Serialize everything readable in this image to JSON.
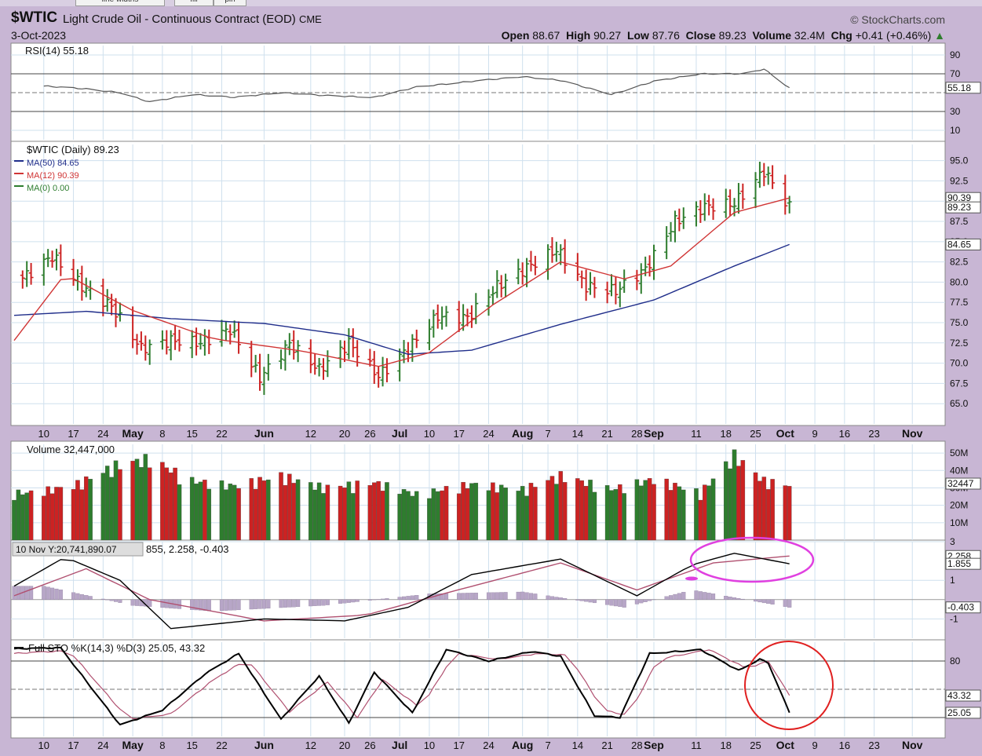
{
  "toolbar_tabs": [
    "line widths",
    "fill",
    "pin"
  ],
  "header": {
    "symbol": "$WTIC",
    "name": "Light Crude Oil - Continuous Contract (EOD)",
    "exchange": "CME",
    "date": "3-Oct-2023",
    "brand": "© StockCharts.com",
    "open_label": "Open",
    "open": "88.67",
    "high_label": "High",
    "high": "90.27",
    "low_label": "Low",
    "low": "87.76",
    "close_label": "Close",
    "close": "89.23",
    "volume_label": "Volume",
    "volume": "32.4M",
    "chg_label": "Chg",
    "chg": "+0.41 (+0.46%)"
  },
  "colors": {
    "up": "#2e7d2e",
    "down": "#cc2222",
    "ma50": "#1f2d8a",
    "ma12": "#d03535",
    "macd_signal": "#b05070",
    "annotation_magenta": "#e040e0",
    "annotation_red": "#e02020"
  },
  "chart_data": [
    {
      "type": "line",
      "panel": "rsi",
      "title": "RSI(14) 55.18",
      "ylim": [
        0,
        100
      ],
      "yticks": [
        "90",
        "70",
        "30",
        "10"
      ],
      "reference_lines": [
        70,
        50,
        30
      ],
      "last_value_label": "55.18",
      "x": [
        "2023-04-10",
        "2023-04-20",
        "2023-04-28",
        "2023-05-05",
        "2023-05-15",
        "2023-05-25",
        "2023-06-05",
        "2023-06-15",
        "2023-06-27",
        "2023-07-07",
        "2023-07-20",
        "2023-08-01",
        "2023-08-10",
        "2023-08-22",
        "2023-09-01",
        "2023-09-12",
        "2023-09-22",
        "2023-09-27",
        "2023-10-03"
      ],
      "values": [
        57,
        54,
        50,
        40,
        48,
        45,
        50,
        47,
        45,
        56,
        62,
        67,
        63,
        48,
        62,
        70,
        70,
        75,
        55
      ]
    },
    {
      "type": "bar",
      "panel": "price",
      "title": "$WTIC (Daily) 89.23",
      "ylim": [
        62.5,
        97
      ],
      "yticks": [
        "95.0",
        "92.5",
        "90.0",
        "87.5",
        "85.0",
        "82.5",
        "80.0",
        "77.5",
        "75.0",
        "72.5",
        "70.0",
        "67.5",
        "65.0"
      ],
      "x_labels": [
        "10",
        "17",
        "24",
        "May",
        "8",
        "15",
        "22",
        "Jun",
        "12",
        "20",
        "26",
        "Jul",
        "10",
        "17",
        "24",
        "Aug",
        "7",
        "14",
        "21",
        "28",
        "Sep",
        "11",
        "18",
        "25",
        "Oct",
        "9",
        "16",
        "23",
        "Nov"
      ],
      "series": [
        {
          "name": "$WTIC (Daily) 89.23",
          "style": "ohlc_bars",
          "x": [
            "2023-04-05",
            "2023-04-12",
            "2023-04-19",
            "2023-04-26",
            "2023-05-03",
            "2023-05-10",
            "2023-05-17",
            "2023-05-24",
            "2023-05-31",
            "2023-06-07",
            "2023-06-14",
            "2023-06-21",
            "2023-06-28",
            "2023-07-05",
            "2023-07-12",
            "2023-07-19",
            "2023-07-26",
            "2023-08-02",
            "2023-08-09",
            "2023-08-16",
            "2023-08-23",
            "2023-08-30",
            "2023-09-06",
            "2023-09-13",
            "2023-09-20",
            "2023-09-27",
            "2023-10-03"
          ],
          "values": [
            80.5,
            83.2,
            79.5,
            77.0,
            71.8,
            72.8,
            72.5,
            74.2,
            68.2,
            72.4,
            69.2,
            72.5,
            68.4,
            71.8,
            75.8,
            75.6,
            79.5,
            81.8,
            84.0,
            79.5,
            78.9,
            81.6,
            87.5,
            89.3,
            89.7,
            93.7,
            89.23
          ]
        },
        {
          "name": "MA(50) 84.65",
          "style": "line",
          "x": [
            "2023-04-03",
            "2023-04-20",
            "2023-05-10",
            "2023-06-01",
            "2023-06-20",
            "2023-07-05",
            "2023-07-20",
            "2023-08-10",
            "2023-09-01",
            "2023-09-20",
            "2023-10-03"
          ],
          "values": [
            75.9,
            76.4,
            75.5,
            74.9,
            73.5,
            71.1,
            71.6,
            74.8,
            77.8,
            82.0,
            84.65
          ]
        },
        {
          "name": "MA(12) 90.39",
          "style": "line",
          "x": [
            "2023-04-03",
            "2023-04-15",
            "2023-05-01",
            "2023-05-20",
            "2023-06-10",
            "2023-06-28",
            "2023-07-10",
            "2023-07-25",
            "2023-08-10",
            "2023-08-25",
            "2023-09-05",
            "2023-09-20",
            "2023-10-03"
          ],
          "values": [
            72.8,
            81.0,
            76.5,
            73.0,
            71.5,
            69.6,
            71.3,
            77.2,
            82.5,
            80.4,
            82.0,
            88.6,
            90.39
          ]
        },
        {
          "name": "MA(0) 0.00",
          "style": "line",
          "x": [],
          "values": []
        }
      ],
      "last_value_labels": [
        "90.39",
        "89.23",
        "84.65"
      ]
    },
    {
      "type": "bar",
      "panel": "volume",
      "title": "Volume 32,447,000",
      "ylim": [
        0,
        55000000
      ],
      "yticks": [
        "50M",
        "40M",
        "30M",
        "20M",
        "10M"
      ],
      "last_value_label": "32447",
      "x": [
        "2023-04-07",
        "2023-04-17",
        "2023-04-27",
        "2023-05-05",
        "2023-05-15",
        "2023-05-25",
        "2023-06-05",
        "2023-06-15",
        "2023-06-27",
        "2023-07-07",
        "2023-07-20",
        "2023-08-01",
        "2023-08-10",
        "2023-08-22",
        "2023-09-01",
        "2023-09-12",
        "2023-09-20",
        "2023-09-27",
        "2023-10-03"
      ],
      "values": [
        28000000,
        32000000,
        44000000,
        48000000,
        35000000,
        32000000,
        38000000,
        31000000,
        34000000,
        27000000,
        33000000,
        30000000,
        38000000,
        30000000,
        36000000,
        28000000,
        50000000,
        35000000,
        32447000
      ]
    },
    {
      "type": "line",
      "panel": "macd",
      "title": "855, 2.258, -0.403",
      "tooltip": "10 Nov Y:20,741,890.07",
      "ylim": [
        -2,
        3
      ],
      "yticks": [
        "3",
        "1",
        "-1"
      ],
      "last_value_labels": [
        "2.258",
        "1.855",
        "-0.403"
      ],
      "series": [
        {
          "name": "MACD",
          "x": [
            "2023-04-03",
            "2023-04-15",
            "2023-04-28",
            "2023-05-10",
            "2023-06-01",
            "2023-06-20",
            "2023-07-05",
            "2023-07-20",
            "2023-08-10",
            "2023-08-28",
            "2023-09-10",
            "2023-09-20",
            "2023-10-03"
          ],
          "values": [
            0.7,
            2.2,
            1.0,
            -1.5,
            -1.0,
            -1.1,
            -0.4,
            1.3,
            2.1,
            0.2,
            1.8,
            2.4,
            1.855
          ]
        },
        {
          "name": "Signal",
          "x": [
            "2023-04-03",
            "2023-04-20",
            "2023-05-05",
            "2023-06-01",
            "2023-06-25",
            "2023-07-15",
            "2023-08-10",
            "2023-08-28",
            "2023-09-15",
            "2023-10-03"
          ],
          "values": [
            0.2,
            1.6,
            0.0,
            -1.1,
            -0.8,
            0.4,
            1.9,
            0.5,
            1.9,
            2.258
          ]
        },
        {
          "name": "Histogram",
          "x": [
            "2023-04-10",
            "2023-05-01",
            "2023-05-20",
            "2023-06-15",
            "2023-07-10",
            "2023-08-01",
            "2023-08-25",
            "2023-09-10",
            "2023-10-03"
          ],
          "values": [
            0.7,
            -0.3,
            -0.6,
            -0.3,
            0.3,
            0.4,
            -0.4,
            0.5,
            -0.403
          ]
        }
      ]
    },
    {
      "type": "line",
      "panel": "stochastic",
      "title": "Full STO %K(14,3) %D(3) 25.05, 43.32",
      "ylim": [
        0,
        100
      ],
      "yticks": [
        "80"
      ],
      "reference_lines": [
        80,
        50,
        20
      ],
      "last_value_labels": [
        "43.32",
        "25.05"
      ],
      "x_labels": [
        "10",
        "17",
        "24",
        "May",
        "8",
        "15",
        "22",
        "Jun",
        "12",
        "20",
        "26",
        "Jul",
        "10",
        "17",
        "24",
        "Aug",
        "7",
        "14",
        "21",
        "28",
        "Sep",
        "11",
        "18",
        "25",
        "Oct",
        "9",
        "16",
        "23",
        "Nov"
      ],
      "series": [
        {
          "name": "%K",
          "x": [
            "2023-04-03",
            "2023-04-14",
            "2023-04-28",
            "2023-05-08",
            "2023-05-18",
            "2023-05-26",
            "2023-06-05",
            "2023-06-14",
            "2023-06-21",
            "2023-06-27",
            "2023-07-06",
            "2023-07-14",
            "2023-07-24",
            "2023-08-03",
            "2023-08-10",
            "2023-08-18",
            "2023-08-24",
            "2023-08-31",
            "2023-09-12",
            "2023-09-21",
            "2023-09-26",
            "2023-09-28",
            "2023-10-03"
          ],
          "values": [
            93,
            94,
            12,
            28,
            66,
            88,
            18,
            64,
            14,
            68,
            25,
            92,
            80,
            90,
            85,
            22,
            20,
            88,
            92,
            70,
            82,
            78,
            25.05
          ]
        },
        {
          "name": "%D",
          "x": [
            "2023-04-03",
            "2023-04-16",
            "2023-04-30",
            "2023-05-10",
            "2023-05-20",
            "2023-05-28",
            "2023-06-07",
            "2023-06-16",
            "2023-06-23",
            "2023-06-29",
            "2023-07-08",
            "2023-07-16",
            "2023-07-26",
            "2023-08-05",
            "2023-08-12",
            "2023-08-20",
            "2023-08-26",
            "2023-09-02",
            "2023-09-14",
            "2023-09-23",
            "2023-09-28",
            "2023-10-03"
          ],
          "values": [
            88,
            91,
            18,
            24,
            60,
            82,
            26,
            58,
            20,
            60,
            30,
            88,
            82,
            88,
            86,
            28,
            22,
            82,
            92,
            72,
            80,
            43.32
          ]
        }
      ]
    }
  ]
}
